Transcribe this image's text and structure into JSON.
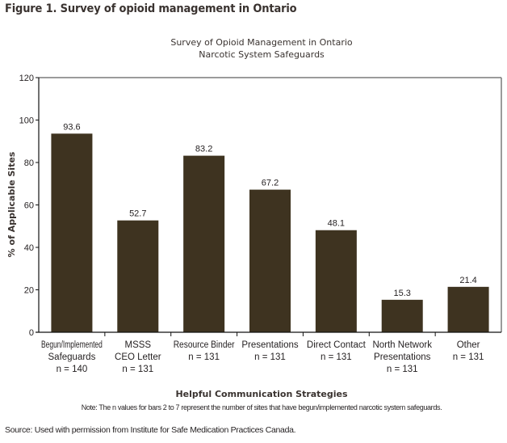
{
  "figure_title": "Figure 1. Survey of opioid management in Ontario",
  "footer": {
    "source": "Source: Used with permission from Institute for Safe Medication Practices Canada."
  },
  "chart_data": {
    "type": "bar",
    "title": "Survey of Opioid Management in Ontario",
    "subtitle": "Narcotic System Safeguards",
    "xlabel": "Helpful Communication Strategies",
    "ylabel": "% of Applicable Sites",
    "note": "Note: The n values for bars 2 to 7 represent the number of sites that have begun/implemented narcotic system safeguards.",
    "ylim": [
      0,
      120
    ],
    "yticks": [
      0,
      20,
      40,
      60,
      80,
      100,
      120
    ],
    "grid": false,
    "bar_color": "#3e3320",
    "categories": [
      {
        "lines": [
          "Begun/Implemented",
          "Safeguards",
          "n = 140"
        ]
      },
      {
        "lines": [
          "MSSS",
          "CEO Letter",
          "n = 131"
        ]
      },
      {
        "lines": [
          "Resource Binder",
          "n = 131"
        ]
      },
      {
        "lines": [
          "Presentations",
          "n = 131"
        ]
      },
      {
        "lines": [
          "Direct Contact",
          "n = 131"
        ]
      },
      {
        "lines": [
          "North Network",
          "Presentations",
          "n = 131"
        ]
      },
      {
        "lines": [
          "Other",
          "n = 131"
        ]
      }
    ],
    "values": [
      93.6,
      52.7,
      83.2,
      67.2,
      48.1,
      15.3,
      21.4
    ],
    "value_labels": [
      "93.6",
      "52.7",
      "83.2",
      "67.2",
      "48.1",
      "15.3",
      "21.4"
    ]
  }
}
